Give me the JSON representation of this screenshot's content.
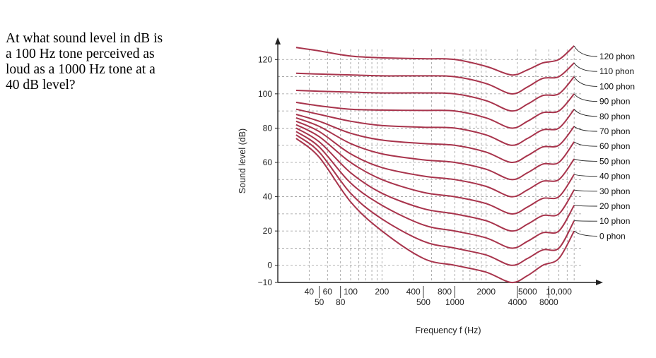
{
  "question": {
    "text": "At what sound level in dB is\na 100 Hz tone perceived as\nloud as a 1000 Hz tone at a\n40 dB level?"
  },
  "colors": {
    "curve": "#a8344c",
    "grid": "#9a9a9a",
    "axis": "#222222"
  },
  "chart_data": {
    "type": "line",
    "title": "",
    "xlabel": "Frequency f (Hz)",
    "ylabel": "Sound level (dB)",
    "xscale": "log",
    "xlim": [
      20,
      20000
    ],
    "ylim": [
      -10,
      130
    ],
    "grid": true,
    "yticks": [
      {
        "value": 120,
        "label": "120"
      },
      {
        "value": 100,
        "label": "100"
      },
      {
        "value": 80,
        "label": "80"
      },
      {
        "value": 60,
        "label": "60"
      },
      {
        "value": 40,
        "label": "40"
      },
      {
        "value": 20,
        "label": "20"
      },
      {
        "value": 0,
        "label": "0"
      },
      {
        "value": -10,
        "label": "−10"
      }
    ],
    "xticks_row1": [
      {
        "value": 40,
        "label": "40"
      },
      {
        "value": 60,
        "label": "60"
      },
      {
        "value": 100,
        "label": "100"
      },
      {
        "value": 200,
        "label": "200"
      },
      {
        "value": 400,
        "label": "400"
      },
      {
        "value": 800,
        "label": "800"
      },
      {
        "value": 2000,
        "label": "2000"
      },
      {
        "value": 5000,
        "label": "5000"
      },
      {
        "value": 10000,
        "label": "10,000"
      }
    ],
    "xticks_row2": [
      {
        "value": 50,
        "label": "50"
      },
      {
        "value": 80,
        "label": "80"
      },
      {
        "value": 500,
        "label": "500"
      },
      {
        "value": 1000,
        "label": "1000"
      },
      {
        "value": 4000,
        "label": "4000"
      },
      {
        "value": 8000,
        "label": "8000"
      }
    ],
    "x": [
      30,
      50,
      100,
      200,
      500,
      1000,
      2000,
      3500,
      5000,
      7000,
      10000,
      14000
    ],
    "series": [
      {
        "name": "120 phon",
        "values": [
          127,
          125,
          122,
          121,
          120.5,
          120,
          116,
          111,
          114,
          118,
          120,
          128
        ]
      },
      {
        "name": "110 phon",
        "values": [
          112,
          111.5,
          111,
          110.5,
          110.5,
          110,
          106,
          100,
          104,
          109,
          110,
          118
        ]
      },
      {
        "name": "100 phon",
        "values": [
          102,
          101.5,
          101,
          100.5,
          100.5,
          100,
          96,
          90,
          94,
          99,
          100,
          110
        ]
      },
      {
        "name": "90 phon",
        "values": [
          95,
          93,
          91,
          90.5,
          90.3,
          90,
          86,
          80,
          84,
          89,
          90,
          100
        ]
      },
      {
        "name": "80 phon",
        "values": [
          91,
          88,
          84,
          81.5,
          80.5,
          80,
          76,
          70,
          74,
          79,
          80,
          91
        ]
      },
      {
        "name": "70 phon",
        "values": [
          88,
          84,
          77,
          73,
          71,
          70,
          66,
          60,
          64,
          69,
          70,
          81
        ]
      },
      {
        "name": "60 phon",
        "values": [
          86,
          81,
          71,
          65,
          61.5,
          60,
          56,
          50,
          54,
          59,
          60,
          72
        ]
      },
      {
        "name": "50 phon",
        "values": [
          84,
          78,
          65,
          57,
          52,
          50,
          46,
          40,
          44,
          49,
          50,
          62
        ]
      },
      {
        "name": "40 phon",
        "values": [
          82,
          75,
          60,
          50,
          42.5,
          40,
          36,
          30,
          34,
          39,
          40,
          53
        ]
      },
      {
        "name": "30 phon",
        "values": [
          80,
          72,
          54,
          42,
          33,
          30,
          26,
          20,
          24,
          29,
          30,
          44
        ]
      },
      {
        "name": "20 phon",
        "values": [
          78,
          69,
          48,
          35,
          23.5,
          20,
          16,
          10,
          14,
          19,
          20,
          35
        ]
      },
      {
        "name": "10 phon",
        "values": [
          76,
          66,
          42,
          27,
          14,
          10,
          6,
          0,
          4,
          9,
          10,
          26
        ]
      },
      {
        "name": "0 phon",
        "values": [
          74,
          63,
          37,
          20,
          4,
          0,
          -4,
          -10,
          -6,
          0,
          4,
          20
        ]
      }
    ]
  }
}
